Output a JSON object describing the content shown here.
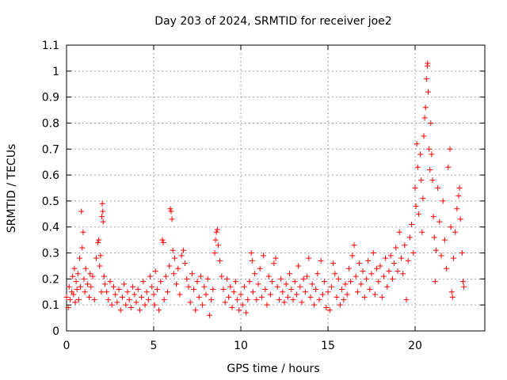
{
  "chart_data": {
    "type": "scatter",
    "title": "Day 203 of 2024, SRMTID for receiver joe2",
    "xlabel": "GPS time / hours",
    "ylabel": "SRMTID / TECUs",
    "xlim": [
      0,
      24
    ],
    "ylim": [
      0,
      1.1
    ],
    "xticks": [
      "0",
      "5",
      "10",
      "15",
      "20"
    ],
    "xtick_values": [
      0,
      5,
      10,
      15,
      20
    ],
    "yticks": [
      "0",
      "0.1",
      "0.2",
      "0.3",
      "0.4",
      "0.5",
      "0.6",
      "0.7",
      "0.8",
      "0.9",
      "1",
      "1.1"
    ],
    "ytick_values": [
      0,
      0.1,
      0.2,
      0.3,
      0.4,
      0.5,
      0.6,
      0.7,
      0.8,
      0.9,
      1.0,
      1.1
    ],
    "grid": true,
    "marker": "+",
    "color": "#ff0000",
    "series": [
      {
        "name": "SRMTID",
        "points": [
          [
            0.0,
            0.13
          ],
          [
            0.1,
            0.09
          ],
          [
            0.15,
            0.17
          ],
          [
            0.2,
            0.12
          ],
          [
            0.3,
            0.15
          ],
          [
            0.35,
            0.21
          ],
          [
            0.4,
            0.14
          ],
          [
            0.45,
            0.24
          ],
          [
            0.5,
            0.11
          ],
          [
            0.55,
            0.19
          ],
          [
            0.6,
            0.16
          ],
          [
            0.65,
            0.22
          ],
          [
            0.7,
            0.12
          ],
          [
            0.75,
            0.28
          ],
          [
            0.8,
            0.17
          ],
          [
            0.85,
            0.46
          ],
          [
            0.9,
            0.32
          ],
          [
            0.95,
            0.38
          ],
          [
            1.0,
            0.2
          ],
          [
            1.05,
            0.15
          ],
          [
            1.1,
            0.24
          ],
          [
            1.2,
            0.18
          ],
          [
            1.3,
            0.13
          ],
          [
            1.35,
            0.22
          ],
          [
            1.4,
            0.17
          ],
          [
            1.5,
            0.21
          ],
          [
            1.6,
            0.12
          ],
          [
            1.7,
            0.28
          ],
          [
            1.8,
            0.34
          ],
          [
            1.85,
            0.35
          ],
          [
            1.9,
            0.25
          ],
          [
            1.95,
            0.29
          ],
          [
            2.0,
            0.15
          ],
          [
            2.02,
            0.44
          ],
          [
            2.05,
            0.49
          ],
          [
            2.08,
            0.46
          ],
          [
            2.1,
            0.42
          ],
          [
            2.15,
            0.21
          ],
          [
            2.2,
            0.18
          ],
          [
            2.3,
            0.15
          ],
          [
            2.4,
            0.12
          ],
          [
            2.5,
            0.19
          ],
          [
            2.6,
            0.1
          ],
          [
            2.7,
            0.17
          ],
          [
            2.8,
            0.14
          ],
          [
            2.9,
            0.11
          ],
          [
            3.0,
            0.16
          ],
          [
            3.1,
            0.08
          ],
          [
            3.2,
            0.13
          ],
          [
            3.3,
            0.18
          ],
          [
            3.4,
            0.1
          ],
          [
            3.5,
            0.15
          ],
          [
            3.6,
            0.12
          ],
          [
            3.7,
            0.09
          ],
          [
            3.8,
            0.17
          ],
          [
            3.9,
            0.14
          ],
          [
            4.0,
            0.11
          ],
          [
            4.1,
            0.16
          ],
          [
            4.2,
            0.08
          ],
          [
            4.3,
            0.13
          ],
          [
            4.4,
            0.19
          ],
          [
            4.5,
            0.1
          ],
          [
            4.6,
            0.15
          ],
          [
            4.7,
            0.12
          ],
          [
            4.8,
            0.21
          ],
          [
            4.9,
            0.17
          ],
          [
            5.0,
            0.14
          ],
          [
            5.05,
            0.1
          ],
          [
            5.1,
            0.23
          ],
          [
            5.2,
            0.16
          ],
          [
            5.3,
            0.08
          ],
          [
            5.4,
            0.19
          ],
          [
            5.5,
            0.35
          ],
          [
            5.55,
            0.34
          ],
          [
            5.6,
            0.12
          ],
          [
            5.7,
            0.21
          ],
          [
            5.8,
            0.15
          ],
          [
            5.9,
            0.25
          ],
          [
            5.95,
            0.47
          ],
          [
            6.0,
            0.46
          ],
          [
            6.05,
            0.43
          ],
          [
            6.1,
            0.31
          ],
          [
            6.15,
            0.22
          ],
          [
            6.2,
            0.28
          ],
          [
            6.3,
            0.18
          ],
          [
            6.4,
            0.24
          ],
          [
            6.5,
            0.14
          ],
          [
            6.6,
            0.29
          ],
          [
            6.7,
            0.31
          ],
          [
            6.8,
            0.26
          ],
          [
            6.9,
            0.2
          ],
          [
            7.0,
            0.17
          ],
          [
            7.1,
            0.11
          ],
          [
            7.2,
            0.22
          ],
          [
            7.3,
            0.16
          ],
          [
            7.4,
            0.08
          ],
          [
            7.5,
            0.19
          ],
          [
            7.6,
            0.13
          ],
          [
            7.7,
            0.21
          ],
          [
            7.8,
            0.1
          ],
          [
            7.9,
            0.17
          ],
          [
            8.0,
            0.14
          ],
          [
            8.1,
            0.2
          ],
          [
            8.2,
            0.06
          ],
          [
            8.3,
            0.12
          ],
          [
            8.4,
            0.16
          ],
          [
            8.5,
            0.3
          ],
          [
            8.55,
            0.35
          ],
          [
            8.6,
            0.38
          ],
          [
            8.65,
            0.39
          ],
          [
            8.7,
            0.33
          ],
          [
            8.8,
            0.27
          ],
          [
            8.9,
            0.21
          ],
          [
            9.0,
            0.16
          ],
          [
            9.1,
            0.11
          ],
          [
            9.2,
            0.2
          ],
          [
            9.3,
            0.13
          ],
          [
            9.4,
            0.17
          ],
          [
            9.5,
            0.09
          ],
          [
            9.6,
            0.15
          ],
          [
            9.7,
            0.19
          ],
          [
            9.8,
            0.12
          ],
          [
            9.9,
            0.08
          ],
          [
            10.0,
            0.14
          ],
          [
            10.1,
            0.1
          ],
          [
            10.2,
            0.17
          ],
          [
            10.3,
            0.07
          ],
          [
            10.4,
            0.12
          ],
          [
            10.5,
            0.19
          ],
          [
            10.6,
            0.3
          ],
          [
            10.65,
            0.27
          ],
          [
            10.7,
            0.15
          ],
          [
            10.8,
            0.22
          ],
          [
            10.9,
            0.12
          ],
          [
            11.0,
            0.18
          ],
          [
            11.1,
            0.24
          ],
          [
            11.2,
            0.13
          ],
          [
            11.3,
            0.29
          ],
          [
            11.4,
            0.16
          ],
          [
            11.5,
            0.1
          ],
          [
            11.6,
            0.21
          ],
          [
            11.7,
            0.14
          ],
          [
            11.8,
            0.19
          ],
          [
            11.9,
            0.26
          ],
          [
            12.0,
            0.28
          ],
          [
            12.1,
            0.17
          ],
          [
            12.2,
            0.12
          ],
          [
            12.3,
            0.2
          ],
          [
            12.4,
            0.15
          ],
          [
            12.5,
            0.11
          ],
          [
            12.6,
            0.18
          ],
          [
            12.7,
            0.13
          ],
          [
            12.8,
            0.22
          ],
          [
            12.9,
            0.16
          ],
          [
            13.0,
            0.12
          ],
          [
            13.1,
            0.19
          ],
          [
            13.2,
            0.14
          ],
          [
            13.3,
            0.25
          ],
          [
            13.4,
            0.17
          ],
          [
            13.5,
            0.11
          ],
          [
            13.6,
            0.2
          ],
          [
            13.7,
            0.15
          ],
          [
            13.8,
            0.21
          ],
          [
            13.9,
            0.28
          ],
          [
            14.0,
            0.13
          ],
          [
            14.1,
            0.18
          ],
          [
            14.2,
            0.1
          ],
          [
            14.3,
            0.16
          ],
          [
            14.4,
            0.22
          ],
          [
            14.5,
            0.12
          ],
          [
            14.6,
            0.27
          ],
          [
            14.7,
            0.14
          ],
          [
            14.8,
            0.19
          ],
          [
            14.9,
            0.09
          ],
          [
            15.0,
            0.15
          ],
          [
            15.1,
            0.08
          ],
          [
            15.2,
            0.17
          ],
          [
            15.3,
            0.26
          ],
          [
            15.4,
            0.22
          ],
          [
            15.5,
            0.13
          ],
          [
            15.6,
            0.2
          ],
          [
            15.7,
            0.1
          ],
          [
            15.8,
            0.16
          ],
          [
            15.9,
            0.12
          ],
          [
            16.0,
            0.18
          ],
          [
            16.1,
            0.14
          ],
          [
            16.2,
            0.24
          ],
          [
            16.3,
            0.19
          ],
          [
            16.4,
            0.29
          ],
          [
            16.5,
            0.33
          ],
          [
            16.6,
            0.21
          ],
          [
            16.7,
            0.15
          ],
          [
            16.8,
            0.26
          ],
          [
            16.9,
            0.18
          ],
          [
            17.0,
            0.23
          ],
          [
            17.1,
            0.13
          ],
          [
            17.2,
            0.2
          ],
          [
            17.3,
            0.27
          ],
          [
            17.4,
            0.16
          ],
          [
            17.5,
            0.22
          ],
          [
            17.6,
            0.3
          ],
          [
            17.7,
            0.14
          ],
          [
            17.8,
            0.24
          ],
          [
            17.9,
            0.19
          ],
          [
            18.0,
            0.25
          ],
          [
            18.1,
            0.13
          ],
          [
            18.2,
            0.21
          ],
          [
            18.3,
            0.28
          ],
          [
            18.4,
            0.17
          ],
          [
            18.5,
            0.23
          ],
          [
            18.6,
            0.29
          ],
          [
            18.7,
            0.2
          ],
          [
            18.8,
            0.26
          ],
          [
            18.9,
            0.32
          ],
          [
            19.0,
            0.23
          ],
          [
            19.1,
            0.38
          ],
          [
            19.2,
            0.28
          ],
          [
            19.3,
            0.22
          ],
          [
            19.4,
            0.33
          ],
          [
            19.5,
            0.12
          ],
          [
            19.6,
            0.27
          ],
          [
            19.7,
            0.36
          ],
          [
            19.8,
            0.41
          ],
          [
            19.9,
            0.3
          ],
          [
            20.0,
            0.55
          ],
          [
            20.05,
            0.48
          ],
          [
            20.1,
            0.72
          ],
          [
            20.15,
            0.63
          ],
          [
            20.2,
            0.45
          ],
          [
            20.3,
            0.68
          ],
          [
            20.35,
            0.58
          ],
          [
            20.4,
            0.38
          ],
          [
            20.45,
            0.51
          ],
          [
            20.5,
            0.75
          ],
          [
            20.55,
            0.82
          ],
          [
            20.6,
            0.86
          ],
          [
            20.65,
            0.97
          ],
          [
            20.7,
            1.02
          ],
          [
            20.72,
            1.03
          ],
          [
            20.75,
            0.92
          ],
          [
            20.8,
            0.7
          ],
          [
            20.85,
            0.62
          ],
          [
            20.9,
            0.8
          ],
          [
            20.95,
            0.68
          ],
          [
            21.0,
            0.58
          ],
          [
            21.05,
            0.44
          ],
          [
            21.1,
            0.36
          ],
          [
            21.15,
            0.19
          ],
          [
            21.2,
            0.31
          ],
          [
            21.3,
            0.55
          ],
          [
            21.4,
            0.42
          ],
          [
            21.5,
            0.29
          ],
          [
            21.6,
            0.5
          ],
          [
            21.7,
            0.35
          ],
          [
            21.8,
            0.24
          ],
          [
            21.9,
            0.63
          ],
          [
            22.0,
            0.7
          ],
          [
            22.05,
            0.4
          ],
          [
            22.1,
            0.15
          ],
          [
            22.15,
            0.13
          ],
          [
            22.2,
            0.28
          ],
          [
            22.3,
            0.38
          ],
          [
            22.4,
            0.47
          ],
          [
            22.5,
            0.52
          ],
          [
            22.55,
            0.55
          ],
          [
            22.6,
            0.43
          ],
          [
            22.7,
            0.3
          ],
          [
            22.75,
            0.19
          ],
          [
            22.8,
            0.17
          ]
        ]
      }
    ]
  }
}
